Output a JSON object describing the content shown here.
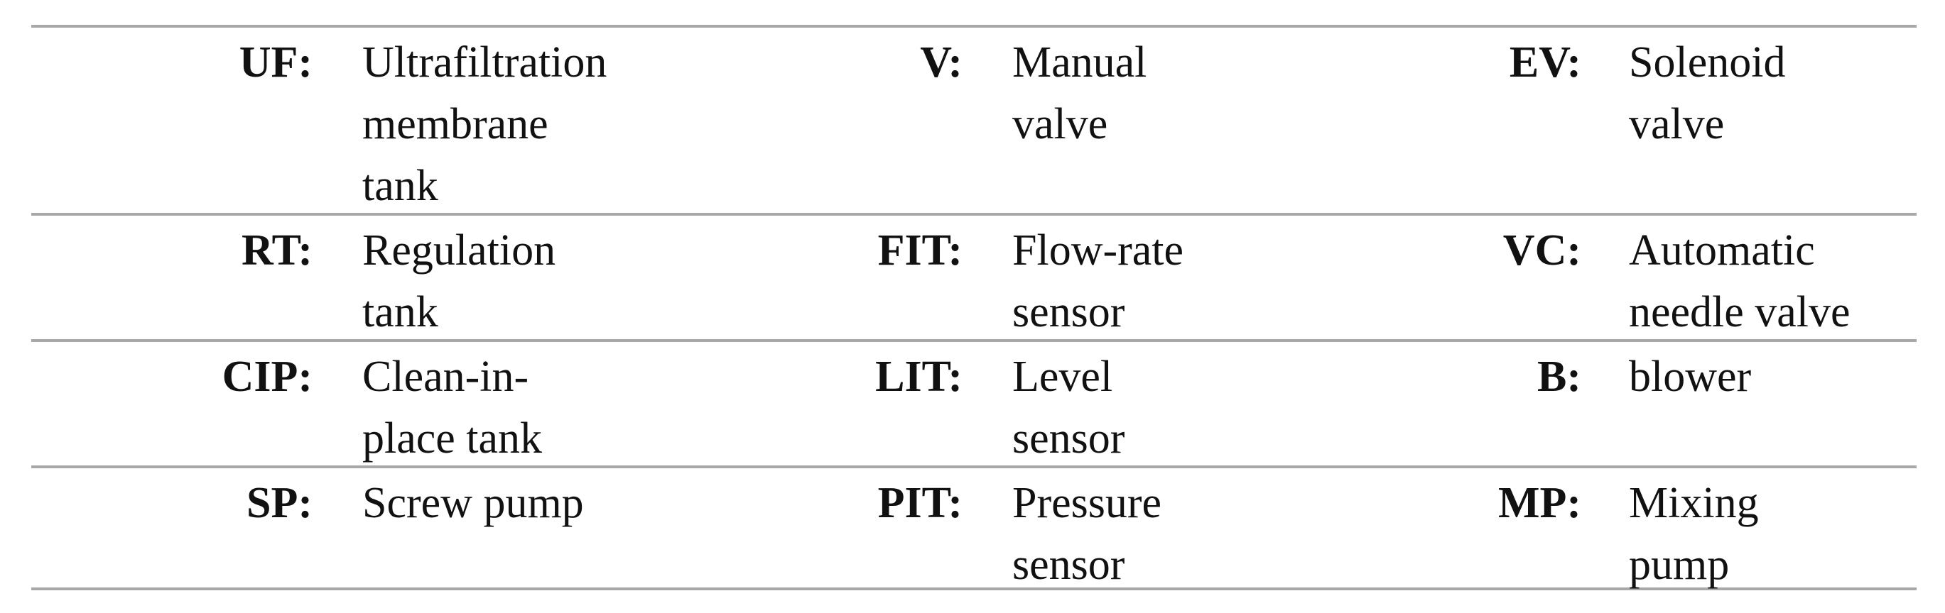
{
  "table": {
    "rows": [
      [
        {
          "abbr": "UF:",
          "desc": [
            "Ultrafiltration",
            "membrane",
            "tank"
          ]
        },
        {
          "abbr": "V:",
          "desc": [
            "Manual",
            "valve"
          ]
        },
        {
          "abbr": "EV:",
          "desc": [
            "Solenoid",
            "valve"
          ]
        }
      ],
      [
        {
          "abbr": "RT:",
          "desc": [
            "Regulation",
            "tank"
          ]
        },
        {
          "abbr": "FIT:",
          "desc": [
            "Flow-rate",
            "sensor"
          ]
        },
        {
          "abbr": "VC:",
          "desc": [
            "Automatic",
            "needle valve"
          ]
        }
      ],
      [
        {
          "abbr": "CIP:",
          "desc": [
            "Clean-in-",
            "place tank"
          ]
        },
        {
          "abbr": "LIT:",
          "desc": [
            "Level",
            "sensor"
          ]
        },
        {
          "abbr": "B:",
          "desc": [
            "blower"
          ]
        }
      ],
      [
        {
          "abbr": "SP:",
          "desc": [
            "Screw pump"
          ]
        },
        {
          "abbr": "PIT:",
          "desc": [
            "Pressure",
            "sensor"
          ]
        },
        {
          "abbr": "MP:",
          "desc": [
            "Mixing",
            "pump"
          ]
        }
      ]
    ]
  }
}
